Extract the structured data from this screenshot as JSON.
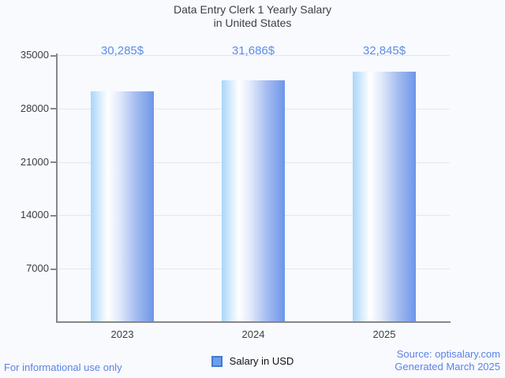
{
  "title": {
    "line1": "Data Entry Clerk 1 Yearly Salary",
    "line2": "in United States"
  },
  "chart_data": {
    "type": "bar",
    "title": "Data Entry Clerk 1 Yearly Salary in United States",
    "categories": [
      "2023",
      "2024",
      "2025"
    ],
    "series": [
      {
        "name": "Salary in USD",
        "values": [
          30285,
          31686,
          32845
        ],
        "value_labels": [
          "30,285$",
          "31,686$",
          "32,845$"
        ]
      }
    ],
    "xlabel": "",
    "ylabel": "",
    "ylim": [
      0,
      35000
    ],
    "yticks": [
      35000,
      28000,
      21000,
      14000,
      7000
    ],
    "grid": true,
    "legend_position": "bottom"
  },
  "legend": {
    "label": "Salary in USD"
  },
  "footer": {
    "left": "For informational use only",
    "source": "Source: optisalary.com",
    "generated": "Generated March 2025"
  },
  "colors": {
    "background": "#f8fafd",
    "title_text": "#3c4043",
    "axis_text": "#3c4043",
    "value_label_text": "#5e8ce8",
    "footer_text": "#5c82e6",
    "gridline": "#e3e6eb",
    "axis_line": "#85878a",
    "bar_gradient_left": "#a9d6fa",
    "bar_gradient_mid": "#ffffff",
    "bar_gradient_right": "#6d96e9",
    "legend_swatch_fill": "#6d9eeb",
    "legend_swatch_border": "#3e7bd6"
  }
}
